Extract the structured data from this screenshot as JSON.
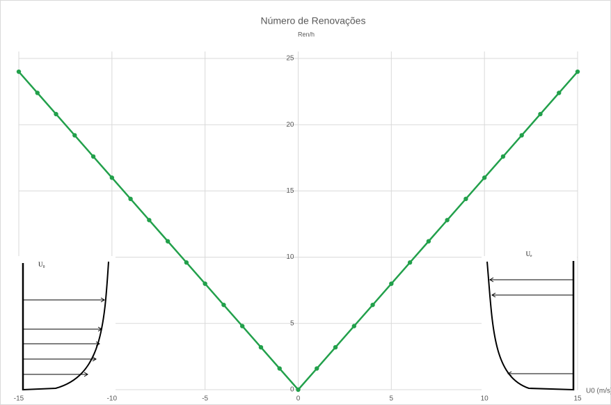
{
  "chart_data": {
    "type": "line",
    "title": "Número de Renovações",
    "y_label": "Ren/h",
    "x_label": "U0 (m/s)",
    "x": [
      -15,
      -14,
      -13,
      -12,
      -11,
      -10,
      -9,
      -8,
      -7,
      -6,
      -5,
      -4,
      -3,
      -2,
      -1,
      0,
      1,
      2,
      3,
      4,
      5,
      6,
      7,
      8,
      9,
      10,
      11,
      12,
      13,
      14,
      15
    ],
    "series": [
      {
        "name": "Ren/h",
        "color": "#22a04b",
        "values": [
          24,
          22.4,
          20.8,
          19.2,
          17.6,
          16,
          14.4,
          12.8,
          11.2,
          9.6,
          8,
          6.4,
          4.8,
          3.2,
          1.6,
          0,
          1.6,
          3.2,
          4.8,
          6.4,
          8,
          9.6,
          11.2,
          12.8,
          14.4,
          16,
          17.6,
          19.2,
          20.8,
          22.4,
          24
        ]
      }
    ],
    "xlim": [
      -15,
      15
    ],
    "xticks": [
      -15,
      -10,
      -5,
      0,
      5,
      10,
      15
    ],
    "ylim": [
      0,
      25
    ],
    "yticks": [
      0,
      5,
      10,
      15,
      20,
      25
    ],
    "grid": true,
    "inset_labels": [
      "U₀",
      "Uₑ"
    ]
  }
}
